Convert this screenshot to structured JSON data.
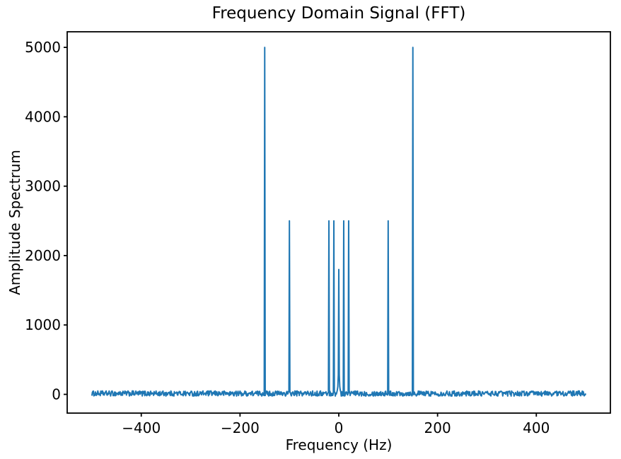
{
  "figure": {
    "background": "#ffffff"
  },
  "chart_data": {
    "type": "line",
    "title": "Frequency Domain Signal (FFT)",
    "xlabel": "Frequency (Hz)",
    "ylabel": "Amplitude Spectrum",
    "line_color": "#1f77b4",
    "axis_color": "#000000",
    "grid": false,
    "legend": null,
    "x_tick_values": [
      -400,
      -200,
      0,
      200,
      400
    ],
    "x_tick_labels": [
      "−400",
      "−200",
      "0",
      "200",
      "400"
    ],
    "y_tick_values": [
      0,
      1000,
      2000,
      3000,
      4000,
      5000
    ],
    "y_tick_labels": [
      "0",
      "1000",
      "2000",
      "3000",
      "4000",
      "5000"
    ],
    "xlim": [
      -550,
      550
    ],
    "ylim": [
      -270,
      5225
    ],
    "x_range_hz": [
      -500,
      500
    ],
    "sample_step_hz": 1,
    "noise_floor": {
      "min": -25,
      "max": 50,
      "seed": 1234
    },
    "peaks": [
      {
        "freq_hz": -150,
        "amplitude": 5000
      },
      {
        "freq_hz": -100,
        "amplitude": 2500
      },
      {
        "freq_hz": -20,
        "amplitude": 2500
      },
      {
        "freq_hz": -10,
        "amplitude": 2500
      },
      {
        "freq_hz": 0,
        "amplitude": 1800,
        "skirt": [
          280,
          110,
          60
        ]
      },
      {
        "freq_hz": 10,
        "amplitude": 2500
      },
      {
        "freq_hz": 20,
        "amplitude": 2500
      },
      {
        "freq_hz": 100,
        "amplitude": 2500
      },
      {
        "freq_hz": 150,
        "amplitude": 5000
      }
    ]
  }
}
